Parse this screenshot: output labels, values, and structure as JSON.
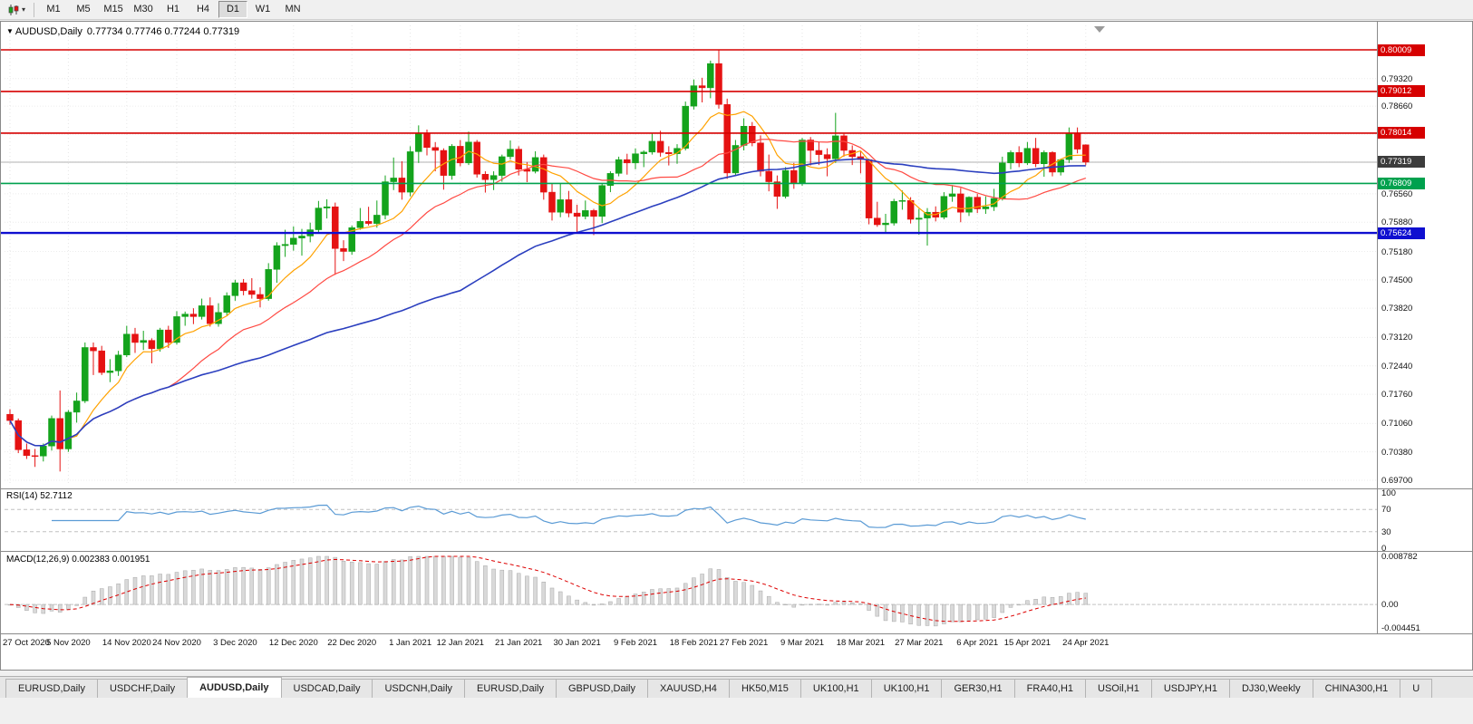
{
  "icons": {
    "dropdown_caret": "▾",
    "window_marker": "▼",
    "chart_type": "candlestick-chart-icon",
    "chart_shift": "chart-shift-marker"
  },
  "toolbar": {
    "timeframes": [
      "M1",
      "M5",
      "M15",
      "M30",
      "H1",
      "H4",
      "D1",
      "W1",
      "MN"
    ],
    "active_timeframe": "D1"
  },
  "chart": {
    "symbol_title": "AUDUSD,Daily",
    "ohlc_text": "0.77734 0.77746 0.77244 0.77319"
  },
  "colors": {
    "up": "#14a31c",
    "down": "#e51212",
    "ma_fast": "#ffa200",
    "ma_mid": "#ff4a43",
    "ma_slow": "#2b3fbf",
    "resistance": "#d60000",
    "support": "#00a14e",
    "support_blue": "#0f0fd0",
    "current_line": "#b0b0b0",
    "current_badge": "#3c3c3c",
    "rsi_line": "#5b9bd5",
    "macd_hist_fill": "#d9d9d9",
    "macd_hist_stroke": "#a8a8a8",
    "macd_signal": "#dd0000"
  },
  "price_axis": {
    "ticks": [
      "0.79320",
      "0.78660",
      "0.77990",
      "0.77320",
      "0.76560",
      "0.75880",
      "0.75180",
      "0.74500",
      "0.73820",
      "0.73120",
      "0.72440",
      "0.71760",
      "0.71060",
      "0.70380",
      "0.69700"
    ],
    "badges": [
      {
        "text": "0.80009",
        "price": 0.80009,
        "type": "resistance"
      },
      {
        "text": "0.79012",
        "price": 0.79012,
        "type": "resistance"
      },
      {
        "text": "0.78014",
        "price": 0.78014,
        "type": "resistance"
      },
      {
        "text": "0.77319",
        "price": 0.77319,
        "type": "current"
      },
      {
        "text": "0.76809",
        "price": 0.76809,
        "type": "support"
      },
      {
        "text": "0.75624",
        "price": 0.75624,
        "type": "support_blue"
      }
    ]
  },
  "rsi": {
    "label": "RSI(14)",
    "value": "52.7112",
    "period": 14,
    "levels": [
      "100",
      "70",
      "30",
      "0"
    ],
    "upper": 70,
    "lower": 30
  },
  "macd": {
    "label": "MACD(12,26,9)",
    "value_main": "0.002383",
    "value_signal": "0.001951",
    "fast": 12,
    "slow": 26,
    "signal": 9,
    "axis_max": "0.008782",
    "axis_zero": "0.00",
    "axis_min": "-0.004451"
  },
  "tabs": {
    "active_index": 2,
    "items": [
      "EURUSD,Daily",
      "USDCHF,Daily",
      "AUDUSD,Daily",
      "USDCAD,Daily",
      "USDCNH,Daily",
      "EURUSD,Daily",
      "GBPUSD,Daily",
      "XAUUSD,H4",
      "HK50,M15",
      "UK100,H1",
      "UK100,H1",
      "GER30,H1",
      "FRA40,H1",
      "USOil,H1",
      "USDJPY,H1",
      "DJ30,Weekly",
      "CHINA300,H1",
      "U"
    ]
  },
  "chart_data": {
    "type": "candlestick",
    "symbol": "AUDUSD",
    "timeframe": "Daily",
    "last_ohlc": {
      "open": 0.77734,
      "high": 0.77746,
      "low": 0.77244,
      "close": 0.77319
    },
    "current_price": 0.77319,
    "y_axis": {
      "top_price": 0.80595,
      "bottom_price": 0.6957
    },
    "horizontal_lines": [
      {
        "price": 0.80009,
        "type": "resistance"
      },
      {
        "price": 0.79012,
        "type": "resistance"
      },
      {
        "price": 0.78014,
        "type": "resistance"
      },
      {
        "price": 0.76809,
        "type": "support"
      },
      {
        "price": 0.75624,
        "type": "support_blue"
      }
    ],
    "moving_averages": [
      {
        "period": 8,
        "color_key": "ma_fast"
      },
      {
        "period": 20,
        "color_key": "ma_mid"
      },
      {
        "period": 55,
        "color_key": "ma_slow"
      }
    ],
    "x_labels": [
      "27 Oct 2020",
      "5 Nov 2020",
      "14 Nov 2020",
      "24 Nov 2020",
      "3 Dec 2020",
      "12 Dec 2020",
      "22 Dec 2020",
      "1 Jan 2021",
      "12 Jan 2021",
      "21 Jan 2021",
      "30 Jan 2021",
      "9 Feb 2021",
      "18 Feb 2021",
      "27 Feb 2021",
      "9 Mar 2021",
      "18 Mar 2021",
      "27 Mar 2021",
      "6 Apr 2021",
      "15 Apr 2021",
      "24 Apr 2021"
    ],
    "x_label_indices": [
      0,
      7,
      14,
      20,
      27,
      34,
      41,
      48,
      54,
      61,
      68,
      75,
      82,
      88,
      95,
      102,
      109,
      116,
      122,
      129
    ],
    "candles": [
      [
        0.7128,
        0.714,
        0.7103,
        0.7113
      ],
      [
        0.7113,
        0.7118,
        0.7035,
        0.7043
      ],
      [
        0.7043,
        0.7058,
        0.7021,
        0.7029
      ],
      [
        0.7029,
        0.7045,
        0.7002,
        0.7028
      ],
      [
        0.7028,
        0.7058,
        0.7015,
        0.7052
      ],
      [
        0.7052,
        0.7125,
        0.7041,
        0.7118
      ],
      [
        0.7118,
        0.7185,
        0.6991,
        0.7045
      ],
      [
        0.7045,
        0.7138,
        0.7038,
        0.7133
      ],
      [
        0.7133,
        0.718,
        0.7108,
        0.716
      ],
      [
        0.716,
        0.73,
        0.7155,
        0.7288
      ],
      [
        0.7288,
        0.73,
        0.7222,
        0.728
      ],
      [
        0.728,
        0.7292,
        0.7222,
        0.7228
      ],
      [
        0.7228,
        0.726,
        0.7205,
        0.7232
      ],
      [
        0.7232,
        0.728,
        0.722,
        0.727
      ],
      [
        0.727,
        0.734,
        0.7265,
        0.732
      ],
      [
        0.732,
        0.7335,
        0.7275,
        0.73
      ],
      [
        0.73,
        0.7328,
        0.7282,
        0.7305
      ],
      [
        0.7305,
        0.731,
        0.725,
        0.7285
      ],
      [
        0.7285,
        0.7335,
        0.7278,
        0.733
      ],
      [
        0.733,
        0.734,
        0.7287,
        0.73
      ],
      [
        0.73,
        0.7375,
        0.7295,
        0.7362
      ],
      [
        0.7362,
        0.7374,
        0.734,
        0.7368
      ],
      [
        0.7368,
        0.7382,
        0.7344,
        0.7362
      ],
      [
        0.7362,
        0.7405,
        0.7355,
        0.7388
      ],
      [
        0.7388,
        0.7408,
        0.7338,
        0.7345
      ],
      [
        0.7345,
        0.7394,
        0.7338,
        0.7372
      ],
      [
        0.7372,
        0.742,
        0.7365,
        0.7412
      ],
      [
        0.7412,
        0.745,
        0.74,
        0.7443
      ],
      [
        0.7443,
        0.7452,
        0.7413,
        0.7424
      ],
      [
        0.7424,
        0.7454,
        0.7405,
        0.7415
      ],
      [
        0.7415,
        0.7432,
        0.7384,
        0.7405
      ],
      [
        0.7405,
        0.749,
        0.74,
        0.7475
      ],
      [
        0.7475,
        0.754,
        0.7443,
        0.7532
      ],
      [
        0.7532,
        0.757,
        0.7505,
        0.7535
      ],
      [
        0.7535,
        0.7578,
        0.752,
        0.755
      ],
      [
        0.755,
        0.7572,
        0.7508,
        0.7555
      ],
      [
        0.7555,
        0.7587,
        0.754,
        0.757
      ],
      [
        0.757,
        0.7639,
        0.7562,
        0.7622
      ],
      [
        0.7622,
        0.7643,
        0.7597,
        0.7625
      ],
      [
        0.7625,
        0.7635,
        0.7462,
        0.7525
      ],
      [
        0.7525,
        0.7545,
        0.7495,
        0.7518
      ],
      [
        0.7518,
        0.758,
        0.751,
        0.7575
      ],
      [
        0.7575,
        0.7622,
        0.757,
        0.759
      ],
      [
        0.759,
        0.7625,
        0.758,
        0.7585
      ],
      [
        0.7585,
        0.764,
        0.7575,
        0.7605
      ],
      [
        0.7605,
        0.77,
        0.7595,
        0.7685
      ],
      [
        0.7685,
        0.7743,
        0.7665,
        0.7694
      ],
      [
        0.7694,
        0.7734,
        0.7642,
        0.766
      ],
      [
        0.766,
        0.777,
        0.765,
        0.7757
      ],
      [
        0.7757,
        0.782,
        0.773,
        0.78
      ],
      [
        0.78,
        0.781,
        0.7748,
        0.7767
      ],
      [
        0.7767,
        0.778,
        0.771,
        0.776
      ],
      [
        0.776,
        0.7765,
        0.7666,
        0.77
      ],
      [
        0.77,
        0.7775,
        0.769,
        0.777
      ],
      [
        0.777,
        0.7785,
        0.7722,
        0.773
      ],
      [
        0.773,
        0.7805,
        0.7725,
        0.778
      ],
      [
        0.778,
        0.7785,
        0.7695,
        0.7703
      ],
      [
        0.7703,
        0.771,
        0.7659,
        0.769
      ],
      [
        0.769,
        0.771,
        0.7665,
        0.77
      ],
      [
        0.77,
        0.775,
        0.7685,
        0.7745
      ],
      [
        0.7745,
        0.7784,
        0.7738,
        0.7763
      ],
      [
        0.7763,
        0.777,
        0.77,
        0.7715
      ],
      [
        0.7715,
        0.7732,
        0.7684,
        0.771
      ],
      [
        0.771,
        0.7758,
        0.7705,
        0.7743
      ],
      [
        0.7743,
        0.775,
        0.7642,
        0.766
      ],
      [
        0.766,
        0.768,
        0.7592,
        0.7612
      ],
      [
        0.7612,
        0.768,
        0.76,
        0.7642
      ],
      [
        0.7642,
        0.7663,
        0.76,
        0.761
      ],
      [
        0.761,
        0.763,
        0.7562,
        0.7602
      ],
      [
        0.7602,
        0.764,
        0.7595,
        0.7616
      ],
      [
        0.7616,
        0.762,
        0.7557,
        0.7602
      ],
      [
        0.7602,
        0.768,
        0.7586,
        0.7676
      ],
      [
        0.7676,
        0.771,
        0.766,
        0.7705
      ],
      [
        0.7705,
        0.7745,
        0.7698,
        0.7738
      ],
      [
        0.7738,
        0.7752,
        0.7702,
        0.773
      ],
      [
        0.773,
        0.7765,
        0.7715,
        0.7752
      ],
      [
        0.7752,
        0.776,
        0.772,
        0.7756
      ],
      [
        0.7756,
        0.78,
        0.775,
        0.7782
      ],
      [
        0.7782,
        0.7807,
        0.7745,
        0.7755
      ],
      [
        0.7755,
        0.777,
        0.7724,
        0.7752
      ],
      [
        0.7752,
        0.7775,
        0.7728,
        0.7765
      ],
      [
        0.7765,
        0.7877,
        0.776,
        0.7866
      ],
      [
        0.7866,
        0.793,
        0.7858,
        0.7915
      ],
      [
        0.7915,
        0.7934,
        0.7875,
        0.791
      ],
      [
        0.791,
        0.7975,
        0.7885,
        0.7968
      ],
      [
        0.7968,
        0.8001,
        0.786,
        0.787
      ],
      [
        0.787,
        0.7884,
        0.7692,
        0.7706
      ],
      [
        0.7706,
        0.7785,
        0.77,
        0.7772
      ],
      [
        0.7772,
        0.7837,
        0.776,
        0.7818
      ],
      [
        0.7818,
        0.7828,
        0.777,
        0.7778
      ],
      [
        0.7778,
        0.7796,
        0.7698,
        0.771
      ],
      [
        0.771,
        0.775,
        0.7662,
        0.7685
      ],
      [
        0.7685,
        0.77,
        0.762,
        0.765
      ],
      [
        0.765,
        0.772,
        0.7645,
        0.7712
      ],
      [
        0.7712,
        0.773,
        0.7668,
        0.7682
      ],
      [
        0.7682,
        0.779,
        0.7675,
        0.7785
      ],
      [
        0.7785,
        0.7792,
        0.7724,
        0.776
      ],
      [
        0.776,
        0.778,
        0.7725,
        0.775
      ],
      [
        0.775,
        0.7765,
        0.7698,
        0.774
      ],
      [
        0.774,
        0.785,
        0.773,
        0.7795
      ],
      [
        0.7795,
        0.78,
        0.7745,
        0.776
      ],
      [
        0.776,
        0.7772,
        0.7725,
        0.7745
      ],
      [
        0.7745,
        0.776,
        0.7705,
        0.7738
      ],
      [
        0.7738,
        0.774,
        0.7583,
        0.7598
      ],
      [
        0.7598,
        0.7637,
        0.7577,
        0.7582
      ],
      [
        0.7582,
        0.7608,
        0.7562,
        0.7586
      ],
      [
        0.7586,
        0.7644,
        0.758,
        0.7638
      ],
      [
        0.7638,
        0.7664,
        0.7618,
        0.764
      ],
      [
        0.764,
        0.7648,
        0.7585,
        0.7595
      ],
      [
        0.7595,
        0.762,
        0.7558,
        0.7598
      ],
      [
        0.7598,
        0.7622,
        0.7532,
        0.7612
      ],
      [
        0.7612,
        0.7626,
        0.759,
        0.76
      ],
      [
        0.76,
        0.766,
        0.7595,
        0.765
      ],
      [
        0.765,
        0.7677,
        0.7637,
        0.7656
      ],
      [
        0.7656,
        0.767,
        0.7588,
        0.7612
      ],
      [
        0.7612,
        0.765,
        0.7603,
        0.7648
      ],
      [
        0.7648,
        0.7656,
        0.761,
        0.762
      ],
      [
        0.762,
        0.765,
        0.7608,
        0.7625
      ],
      [
        0.7625,
        0.7668,
        0.7615,
        0.7645
      ],
      [
        0.7645,
        0.7745,
        0.764,
        0.773
      ],
      [
        0.773,
        0.776,
        0.7715,
        0.7755
      ],
      [
        0.7755,
        0.777,
        0.772,
        0.773
      ],
      [
        0.773,
        0.778,
        0.7725,
        0.7765
      ],
      [
        0.7765,
        0.779,
        0.772,
        0.7728
      ],
      [
        0.7728,
        0.776,
        0.7697,
        0.7755
      ],
      [
        0.7755,
        0.7758,
        0.7698,
        0.7708
      ],
      [
        0.7708,
        0.774,
        0.77,
        0.7738
      ],
      [
        0.7738,
        0.7815,
        0.773,
        0.78
      ],
      [
        0.78,
        0.7815,
        0.7753,
        0.7763
      ],
      [
        0.77734,
        0.77746,
        0.77244,
        0.77319
      ]
    ]
  }
}
